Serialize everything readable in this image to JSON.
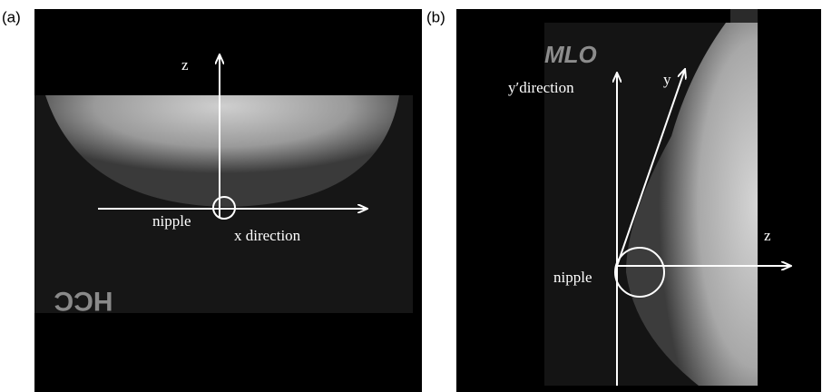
{
  "panels": [
    {
      "label": "(a)",
      "image_text": "HCC",
      "axis_labels": [
        "z",
        "x direction"
      ],
      "point_label": "nipple"
    },
    {
      "label": "(b)",
      "image_text": "MLO",
      "axis_labels": [
        "y′direction",
        "y",
        "z"
      ],
      "point_label": "nipple"
    }
  ]
}
